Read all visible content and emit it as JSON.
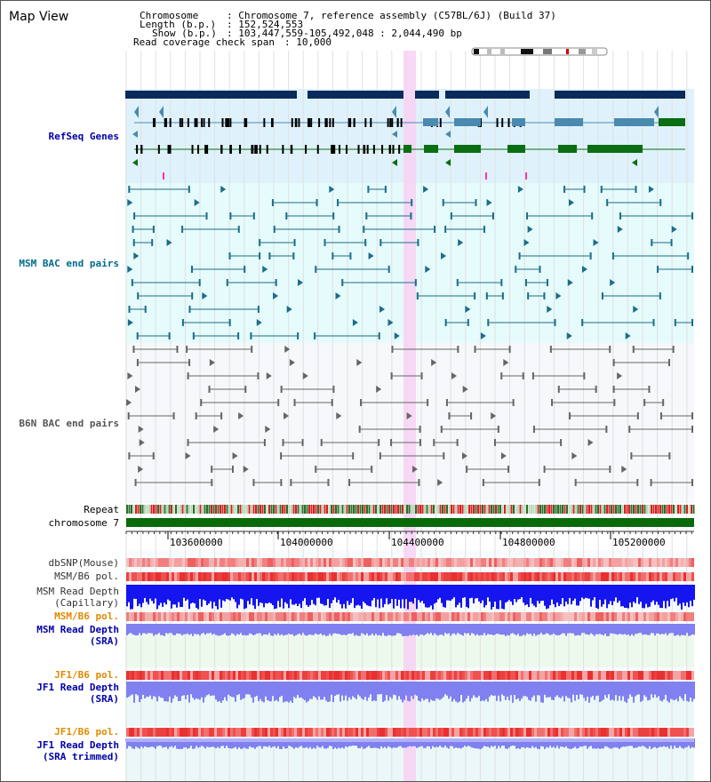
{
  "window": {
    "title": "Map View"
  },
  "info": {
    "chromosome_label": "Chromosome",
    "chromosome_value": ": Chromosome 7, reference assembly (C57BL/6J) (Build 37)",
    "length_label": "Length (b.p.)",
    "length_value": ": 152,524,553",
    "show_label": "Show (b.p.)",
    "show_value": ": 103,447,559-105,492,048 : 2,044,490 bp",
    "coverage_label": "Read coverage check span",
    "coverage_value": ": 10,000"
  },
  "tracks": {
    "refseq": "RefSeq Genes",
    "msm_bac": "MSM BAC end pairs",
    "b6n_bac": "B6N BAC end pairs",
    "repeat": "Repeat",
    "chromosome": "chromosome 7",
    "dbsnp": "dbSNP(Mouse)",
    "msm_b6_pol_1": "MSM/B6 pol.",
    "msm_depth_cap_1": "MSM Read Depth",
    "msm_depth_cap_2": "(Capillary)",
    "msm_b6_pol_2": "MSM/B6 pol.",
    "msm_depth_sra_1": "MSM Read Depth",
    "msm_depth_sra_2": "(SRA)",
    "jf1_b6_pol_1": "JF1/B6 pol.",
    "jf1_depth_sra_1": "JF1 Read Depth",
    "jf1_depth_sra_2": "(SRA)",
    "jf1_b6_pol_2": "JF1/B6 pol.",
    "jf1_depth_trim_1": "JF1 Read Depth",
    "jf1_depth_trim_2": "(SRA trimmed)"
  },
  "ruler": {
    "ticks": [
      "103600000",
      "104000000",
      "104400000",
      "104800000",
      "105200000"
    ]
  },
  "colors": {
    "refseq_bg": "#dff2fb",
    "msm_bg": "#e6fbfb",
    "b6n_bg": "#f6f8fb",
    "gene_dark": "#0b2a5c",
    "gene_teal": "#4a8ab0",
    "gene_green": "#0a6e12",
    "bac_teal": "#1a6e8a",
    "bac_gray": "#666666",
    "depth_blue": "#1515f0",
    "depth_lav": "#8080f0",
    "highlight": "#f7d2f3",
    "label_blue": "#0000aa",
    "label_teal": "#006b8f",
    "label_orange": "#e08a00"
  }
}
